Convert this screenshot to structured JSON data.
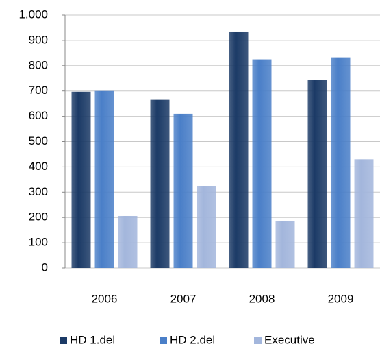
{
  "chart_data": {
    "type": "bar",
    "categories": [
      "2006",
      "2007",
      "2008",
      "2009"
    ],
    "series": [
      {
        "name": "HD 1.del",
        "color": "#1b3a66",
        "values": [
          697,
          665,
          935,
          743
        ]
      },
      {
        "name": "HD 2.del",
        "color": "#4a7fc8",
        "values": [
          700,
          610,
          825,
          833
        ]
      },
      {
        "name": "Executive",
        "color": "#a3b6dc",
        "values": [
          206,
          325,
          187,
          430
        ]
      }
    ],
    "ylim": [
      0,
      1000
    ],
    "yticks": [
      0,
      100,
      200,
      300,
      400,
      500,
      600,
      700,
      800,
      900,
      {
        "value": 1000,
        "label": "1.000"
      }
    ],
    "grid": true,
    "legend": "bottom"
  }
}
